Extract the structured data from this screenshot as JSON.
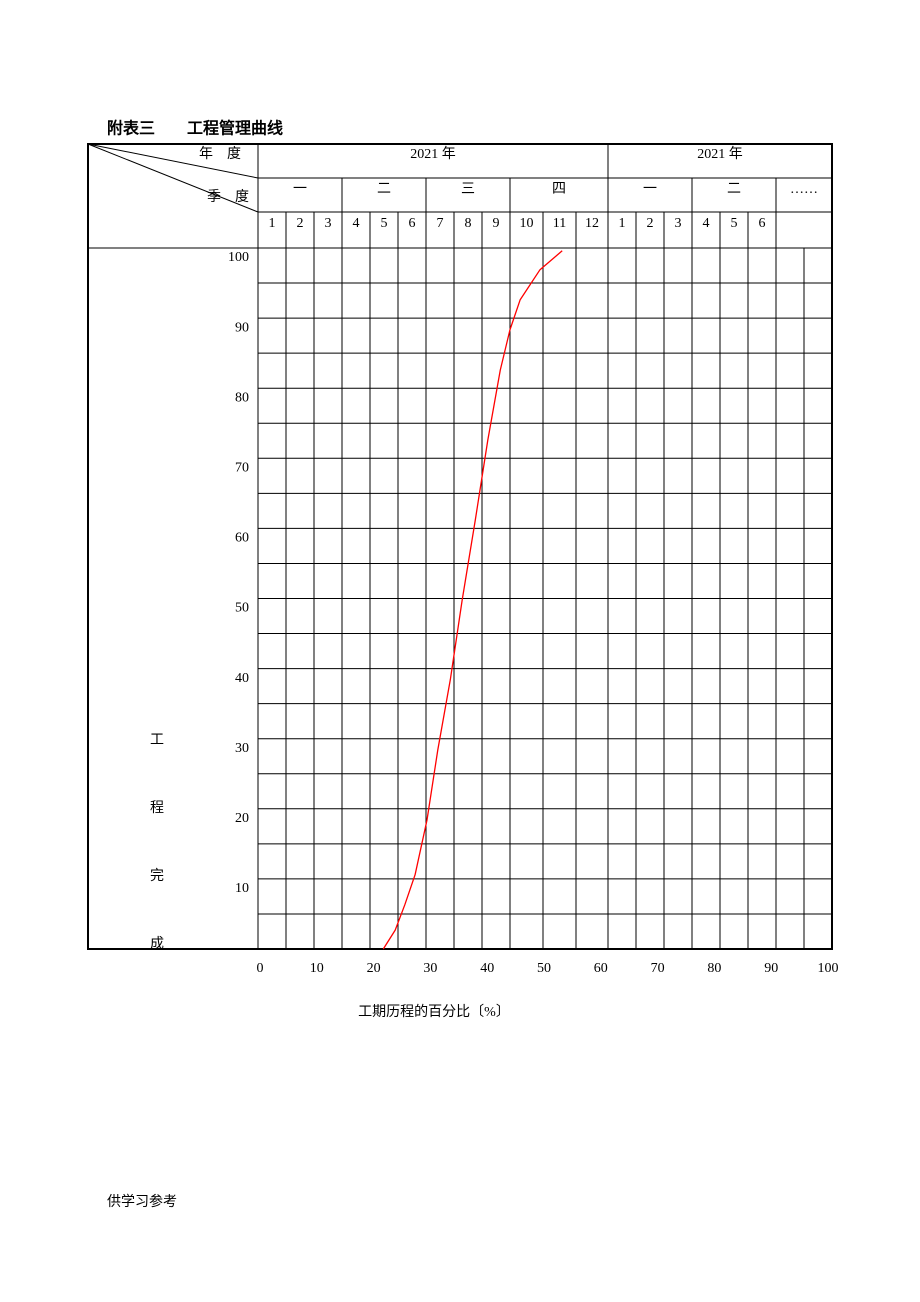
{
  "title": "附表三　　工程管理曲线",
  "table_header": {
    "corner_top": "年　度",
    "corner_bottom": "季　度",
    "years": [
      "2021 年",
      "2021 年"
    ],
    "quarters": [
      "一",
      "二",
      "三",
      "四",
      "一",
      "二",
      "……"
    ],
    "months": [
      "1",
      "2",
      "3",
      "4",
      "5",
      "6",
      "7",
      "8",
      "9",
      "10",
      "11",
      "12",
      "1",
      "2",
      "3",
      "4",
      "5",
      "6"
    ]
  },
  "chart_data": {
    "type": "line",
    "ylabel": [
      "工",
      "程",
      "完",
      "成"
    ],
    "xlabel": "工期历程的百分比〔%〕",
    "xlim": [
      0,
      100
    ],
    "ylim": [
      0,
      100
    ],
    "xticks": [
      0,
      10,
      20,
      30,
      40,
      50,
      60,
      70,
      80,
      90,
      100
    ],
    "yticks": [
      10,
      20,
      30,
      40,
      50,
      60,
      70,
      80,
      90,
      100
    ],
    "series": [
      {
        "color": "#ff0000",
        "x": [
          21.7,
          23.8,
          25.5,
          27.3,
          29.4,
          31.3,
          33.5,
          35.6,
          37.9,
          40.1,
          42.3,
          44.0,
          45.8,
          49.3,
          53.2
        ],
        "values": [
          0,
          2.7,
          6.3,
          10.6,
          18.4,
          28.4,
          38.4,
          49.8,
          61.2,
          72.6,
          82.6,
          88.3,
          92.6,
          96.9,
          99.6
        ]
      }
    ]
  },
  "footer": "供学习参考"
}
